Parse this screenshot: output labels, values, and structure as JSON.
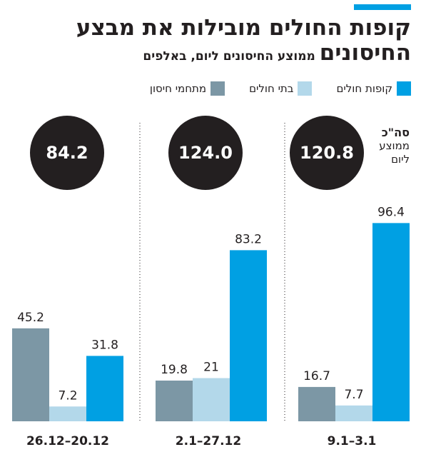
{
  "title": {
    "line1": "קופות החולים מובילות את מבצע",
    "line2": "החיסונים",
    "subtitle": "ממוצע החיסונים ליום, באלפים"
  },
  "legend": [
    {
      "label": "קופות חולים",
      "color": "#00a0e3"
    },
    {
      "label": "בתי חולים",
      "color": "#b3d8ea"
    },
    {
      "label": "מתחמי חיסון",
      "color": "#7c97a5"
    }
  ],
  "avg_label": {
    "line1": "סה\"כ",
    "line2": "ממוצע",
    "line3": "ליום"
  },
  "chart_data": {
    "type": "bar",
    "categories": [
      "26.12–20.12",
      "2.1–27.12",
      "9.1–3.1"
    ],
    "series": [
      {
        "name": "מתחמי חיסון",
        "color": "#7c97a5",
        "values": [
          45.2,
          19.8,
          16.7
        ],
        "labels": [
          "45.2",
          "19.8",
          "16.7"
        ]
      },
      {
        "name": "בתי חולים",
        "color": "#b3d8ea",
        "values": [
          7.2,
          21,
          7.7
        ],
        "labels": [
          "7.2",
          "21",
          "7.7"
        ]
      },
      {
        "name": "קופות חולים",
        "color": "#00a0e3",
        "values": [
          31.8,
          83.2,
          96.4
        ],
        "labels": [
          "31.8",
          "83.2",
          "96.4"
        ]
      }
    ],
    "totals": [
      "84.2",
      "124.0",
      "120.8"
    ],
    "ylim": [
      0,
      100
    ],
    "grid": false,
    "legend_position": "top"
  }
}
